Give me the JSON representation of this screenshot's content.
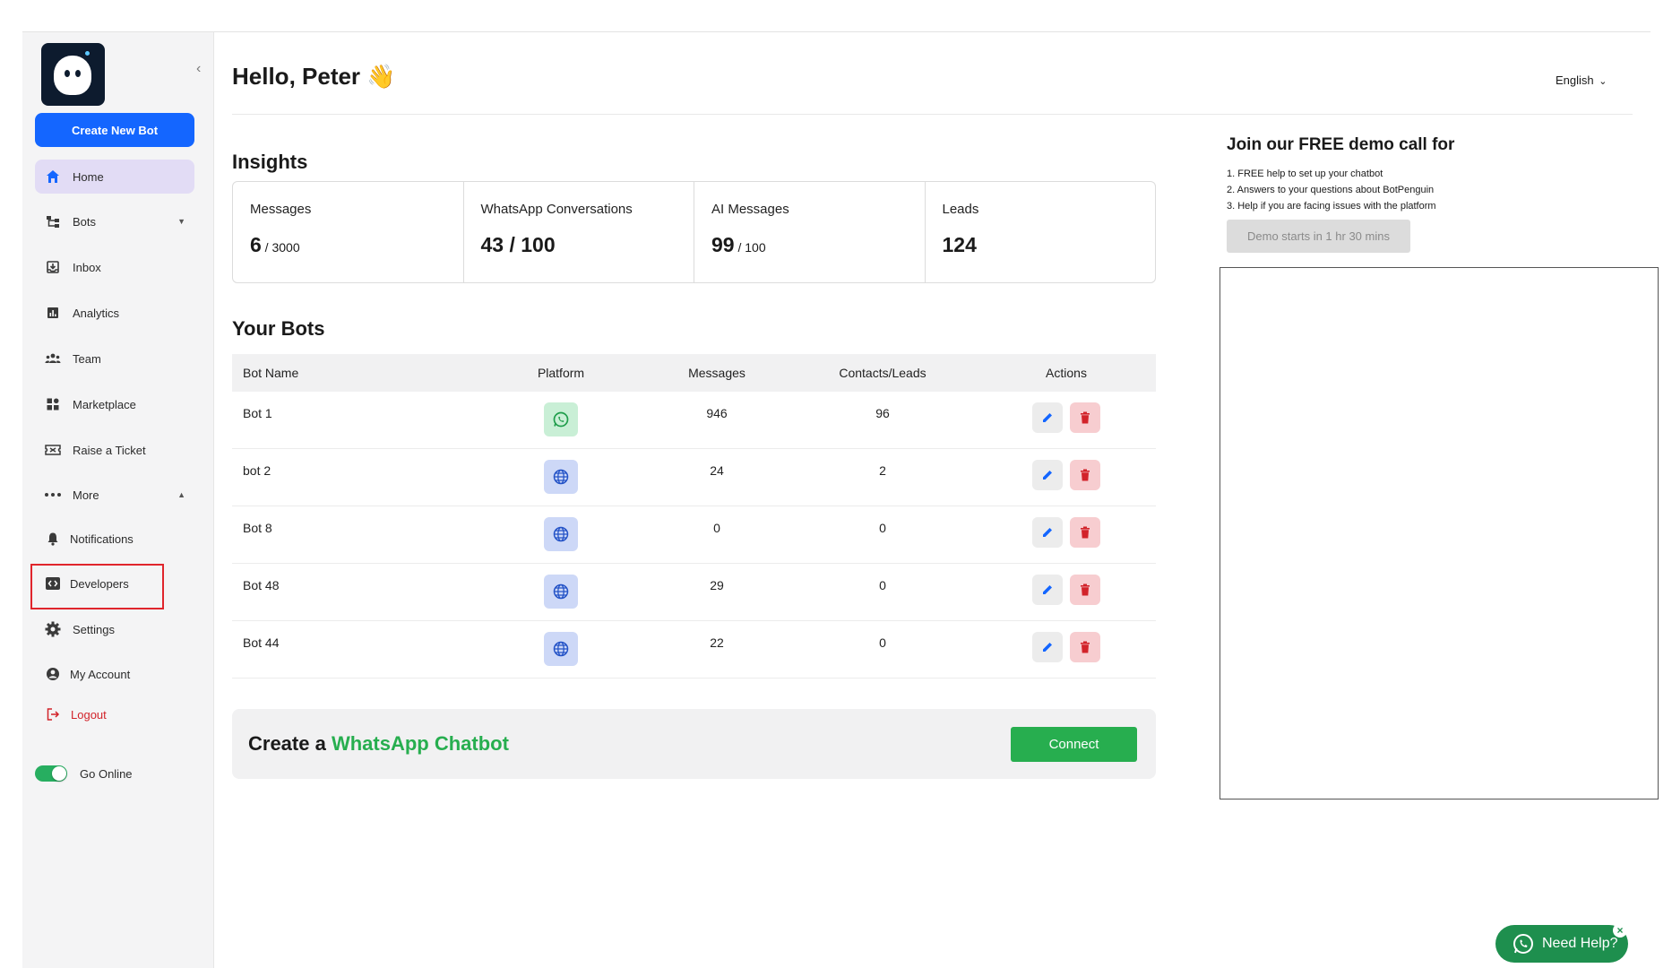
{
  "sidebar": {
    "create_label": "Create New Bot",
    "items": [
      {
        "label": "Home",
        "icon": "home-icon"
      },
      {
        "label": "Bots",
        "icon": "bots-icon"
      },
      {
        "label": "Inbox",
        "icon": "inbox-icon"
      },
      {
        "label": "Analytics",
        "icon": "analytics-icon"
      },
      {
        "label": "Team",
        "icon": "team-icon"
      },
      {
        "label": "Marketplace",
        "icon": "marketplace-icon"
      },
      {
        "label": "Raise a Ticket",
        "icon": "ticket-icon"
      },
      {
        "label": "More",
        "icon": "more-icon"
      },
      {
        "label": "Notifications",
        "icon": "bell-icon"
      },
      {
        "label": "Developers",
        "icon": "code-icon"
      },
      {
        "label": "Settings",
        "icon": "gear-icon"
      },
      {
        "label": "My Account",
        "icon": "account-icon"
      },
      {
        "label": "Logout",
        "icon": "logout-icon"
      }
    ],
    "online_label": "Go Online",
    "online": true
  },
  "header": {
    "greeting": "Hello, Peter 👋",
    "language": "English"
  },
  "insights": {
    "title": "Insights",
    "cards": [
      {
        "label": "Messages",
        "value": "6",
        "sub": " / 3000"
      },
      {
        "label": "WhatsApp Conversations",
        "value": "43 / 100",
        "sub": ""
      },
      {
        "label": "AI Messages",
        "value": "99",
        "sub": " / 100"
      },
      {
        "label": "Leads",
        "value": "124",
        "sub": ""
      }
    ]
  },
  "bots": {
    "title": "Your Bots",
    "columns": [
      "Bot Name",
      "Platform",
      "Messages",
      "Contacts/Leads",
      "Actions"
    ],
    "rows": [
      {
        "name": "Bot 1",
        "platform": "whatsapp",
        "messages": "946",
        "leads": "96"
      },
      {
        "name": "bot 2",
        "platform": "web",
        "messages": "24",
        "leads": "2"
      },
      {
        "name": "Bot 8",
        "platform": "web",
        "messages": "0",
        "leads": "0"
      },
      {
        "name": "Bot 48",
        "platform": "web",
        "messages": "29",
        "leads": "0"
      },
      {
        "name": "Bot 44",
        "platform": "web",
        "messages": "22",
        "leads": "0"
      }
    ]
  },
  "banner": {
    "prefix": "Create a ",
    "highlight": "WhatsApp Chatbot",
    "button": "Connect"
  },
  "demo": {
    "title": "Join our FREE demo call for",
    "points": [
      "1. FREE help to set up your chatbot",
      "2. Answers to your questions about BotPenguin",
      "3. Help if you are facing issues with the platform"
    ],
    "button": "Demo starts in 1 hr 30 mins"
  },
  "help": {
    "label": "Need Help?"
  },
  "colors": {
    "primary": "#1466ff",
    "green": "#27ae4f",
    "danger": "#d2232a",
    "active_nav": "#e2dcf5"
  }
}
